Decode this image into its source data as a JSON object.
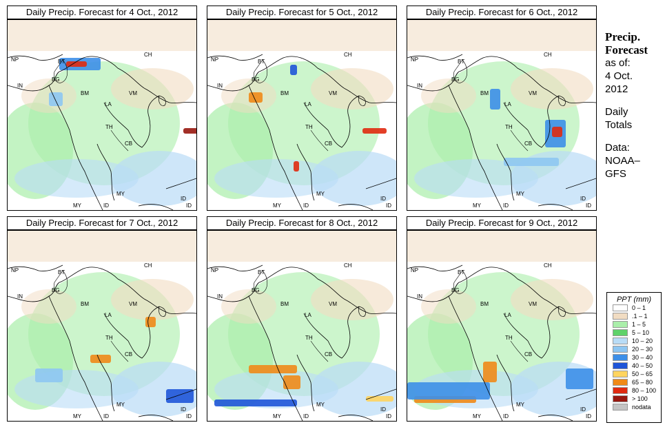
{
  "panels": [
    {
      "title": "Daily Precip. Forecast for  4 Oct., 2012"
    },
    {
      "title": "Daily Precip. Forecast for  5 Oct., 2012"
    },
    {
      "title": "Daily Precip. Forecast for  6 Oct., 2012"
    },
    {
      "title": "Daily Precip. Forecast for  7 Oct., 2012"
    },
    {
      "title": "Daily Precip. Forecast for  8 Oct., 2012"
    },
    {
      "title": "Daily Precip. Forecast for  9 Oct., 2012"
    }
  ],
  "map_labels": [
    "NP",
    "BT",
    "BG",
    "IN",
    "BM",
    "CH",
    "VM",
    "LA",
    "TH",
    "CB",
    "MY",
    "MY",
    "ID",
    "ID",
    "ID"
  ],
  "sidebar": {
    "heading_1": "Precip.",
    "heading_2": "Forecast",
    "as_of": "as of:",
    "date_1": "4 Oct.",
    "date_2": "2012",
    "daily_1": "Daily",
    "daily_2": "Totals",
    "data_1": "Data:",
    "data_2": "NOAA–",
    "data_3": "GFS"
  },
  "legend": {
    "title": "PPT (mm)",
    "items": [
      {
        "label": "0 – 1",
        "color": "#ffffff"
      },
      {
        "label": ".1 – 1",
        "color": "#f1dcc2"
      },
      {
        "label": "1 – 5",
        "color": "#aaeeaa"
      },
      {
        "label": "5 – 10",
        "color": "#5fd26a"
      },
      {
        "label": "10 – 20",
        "color": "#b9dcf6"
      },
      {
        "label": "20 – 30",
        "color": "#8ec6f2"
      },
      {
        "label": "30 – 40",
        "color": "#3d8fe8"
      },
      {
        "label": "40 – 50",
        "color": "#1f55d8"
      },
      {
        "label": "50 – 65",
        "color": "#ffd45f"
      },
      {
        "label": "65 – 80",
        "color": "#f08a18"
      },
      {
        "label": "80 – 100",
        "color": "#e02a10"
      },
      {
        "label": "> 100",
        "color": "#981810"
      },
      {
        "label": "nodata",
        "color": "#c4c4c4"
      }
    ]
  }
}
